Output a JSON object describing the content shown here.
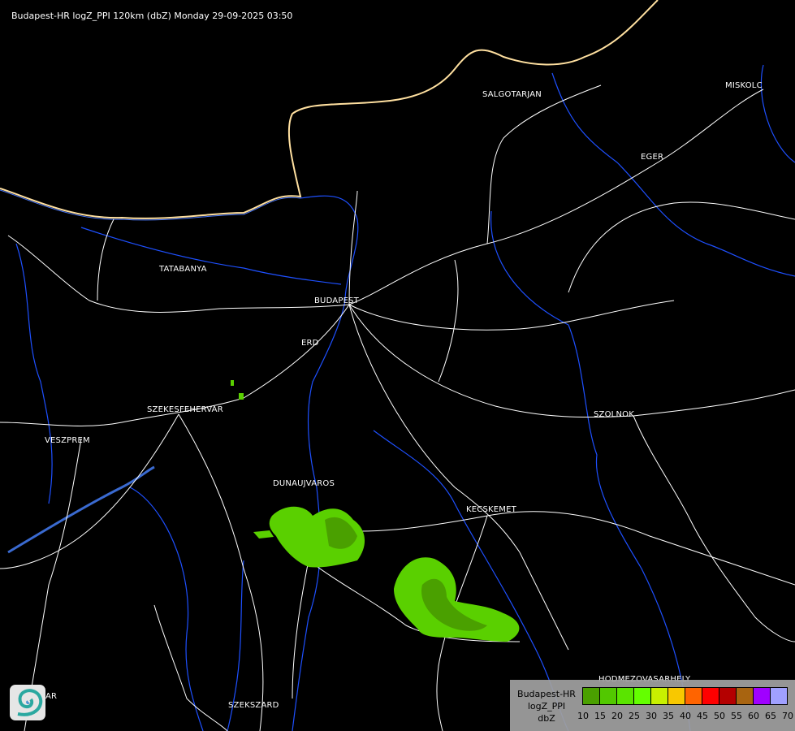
{
  "title": "Budapest-HR logZ_PPI 120km (dbZ) Monday 29-09-2025 03:50",
  "cities": [
    {
      "name": "SALGOTARJAN"
    },
    {
      "name": "MISKOLC"
    },
    {
      "name": "EGER"
    },
    {
      "name": "TATABANYA"
    },
    {
      "name": "BUDAPEST"
    },
    {
      "name": "ERD"
    },
    {
      "name": "SZEKESFEHERVAR"
    },
    {
      "name": "VESZPREM"
    },
    {
      "name": "SZOLNOK"
    },
    {
      "name": "DUNAUJVAROS"
    },
    {
      "name": "KECSKEMET"
    },
    {
      "name": "HODMEZOVASARHELY"
    },
    {
      "name": "SZEKSZARD"
    },
    {
      "name": "AR"
    }
  ],
  "legend": {
    "line1": "Budapest-HR",
    "line2": "logZ_PPI",
    "line3": "dbZ",
    "ticks": [
      "10",
      "15",
      "20",
      "25",
      "30",
      "35",
      "40",
      "45",
      "50",
      "55",
      "60",
      "65",
      "70"
    ],
    "colors": [
      "#4aa000",
      "#52c800",
      "#5ae400",
      "#64ff00",
      "#c8f000",
      "#f8c800",
      "#ff6400",
      "#ff0000",
      "#b40000",
      "#a86410",
      "#a000ff",
      "#a0a0ff"
    ]
  },
  "colors": {
    "border": "#ffe0a0",
    "rivers": "#1e50ff",
    "roads": "#ffffff",
    "echo": "#64c800"
  },
  "logo_icon": "weather-service-swirl-logo"
}
